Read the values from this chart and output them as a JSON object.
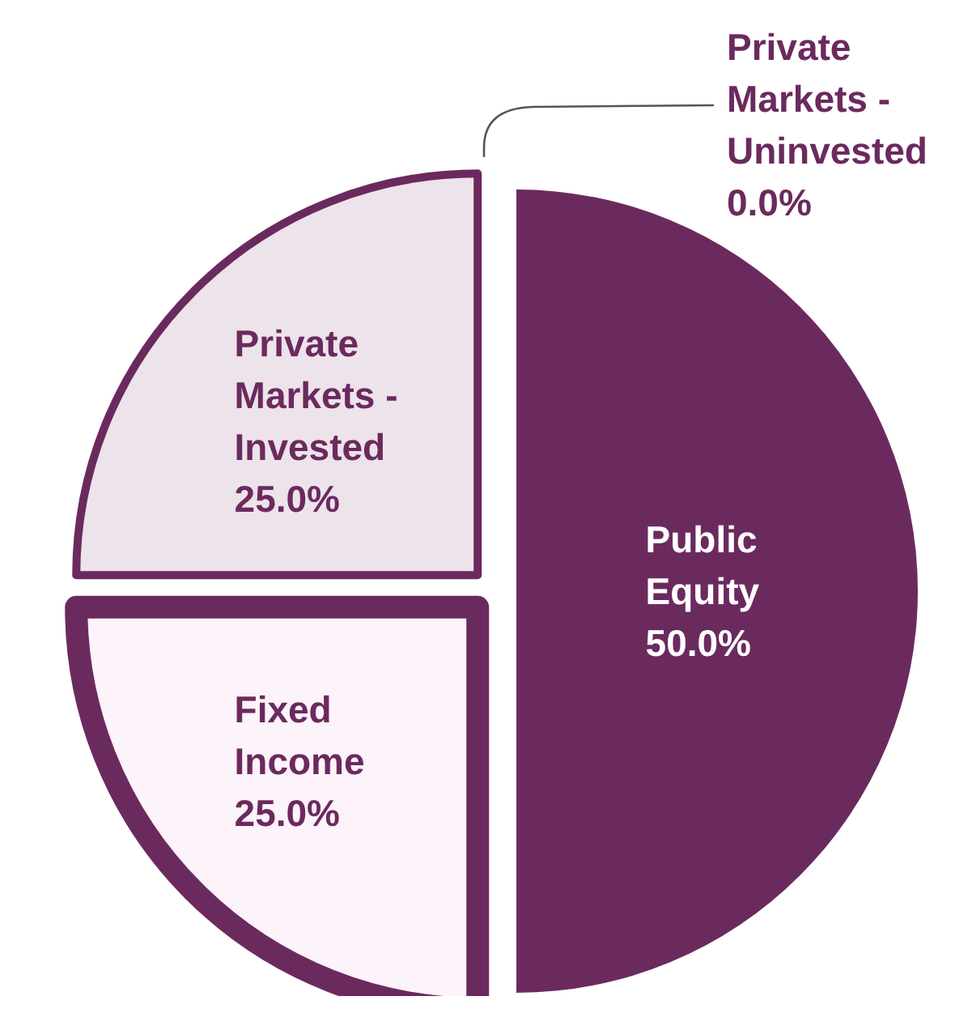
{
  "chart_data": {
    "type": "pie",
    "categories": [
      "Public Equity",
      "Fixed Income",
      "Private Markets - Invested",
      "Private Markets - Uninvested"
    ],
    "values": [
      50,
      25,
      25,
      0
    ],
    "colors": [
      "#6b2a5e",
      "#fdf3fa",
      "#ede3ea",
      "#6b2a5e"
    ],
    "value_labels": [
      "50.0%",
      "25.0%",
      "25.0%",
      "0.0%"
    ],
    "legend": false
  }
}
